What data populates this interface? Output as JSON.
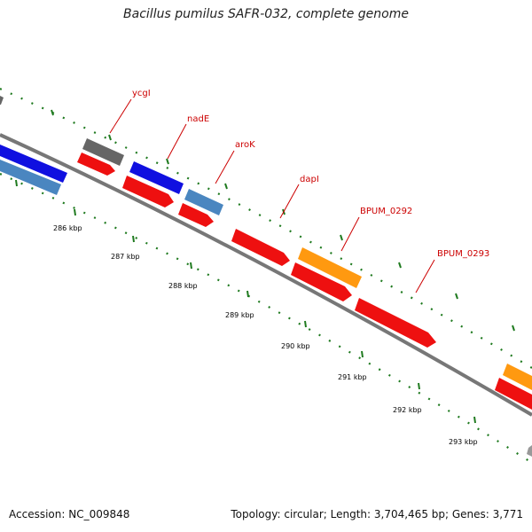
{
  "title": "Bacillus pumilus SAFR-032, complete genome",
  "footer": {
    "accession": "Accession: NC_009848",
    "topology": "Topology: circular; Length: 3,704,465 bp; Genes: 3,771"
  },
  "colors": {
    "backbone": "#777777",
    "tick_dots": "#1f7a1f",
    "tick_major": "#1f7a1f",
    "label_line": "#cc0000",
    "label_text": "#cc0000",
    "gene_gray": "#666666",
    "gene_blue": "#1010e0",
    "gene_steelblue": "#4a86c0",
    "gene_red": "#ee1010",
    "gene_orange": "#ff9910"
  },
  "kbp_ticks": [
    "286 kbp",
    "287 kbp",
    "288 kbp",
    "289 kbp",
    "290 kbp",
    "291 kbp",
    "292 kbp",
    "293 kbp"
  ],
  "gene_labels": [
    "ycgI",
    "nadE",
    "aroK",
    "dapI",
    "BPUM_0292",
    "BPUM_0293"
  ]
}
